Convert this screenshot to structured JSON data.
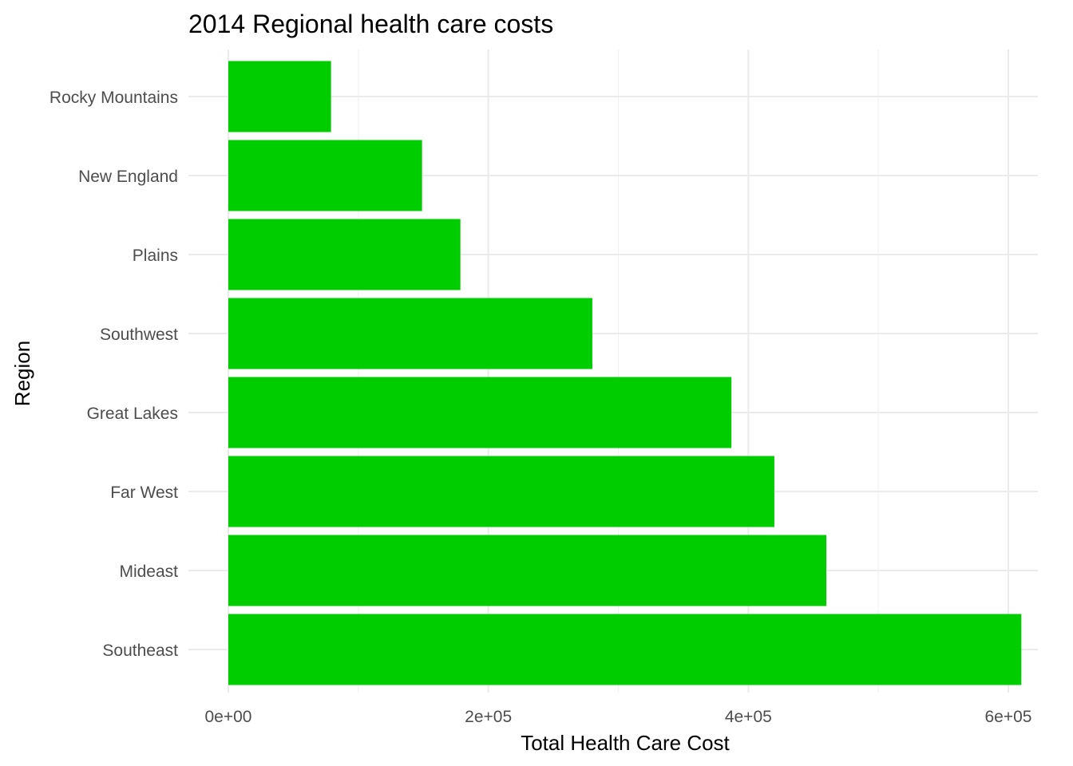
{
  "chart_data": {
    "type": "bar",
    "orientation": "horizontal",
    "title": "2014 Regional health care costs",
    "xlabel": "Total Health Care Cost",
    "ylabel": "Region",
    "categories": [
      "Southeast",
      "Mideast",
      "Far West",
      "Great Lakes",
      "Southwest",
      "Plains",
      "New England",
      "Rocky Mountains"
    ],
    "values": [
      610000,
      460000,
      420000,
      387000,
      280000,
      178500,
      149000,
      79000
    ],
    "xlim": [
      0,
      620000
    ],
    "xticks": [
      0,
      200000,
      400000,
      600000
    ],
    "xtick_labels": [
      "0e+00",
      "2e+05",
      "4e+05",
      "6e+05"
    ],
    "bar_color": "#00CD00",
    "grid": true,
    "legend": "none"
  }
}
